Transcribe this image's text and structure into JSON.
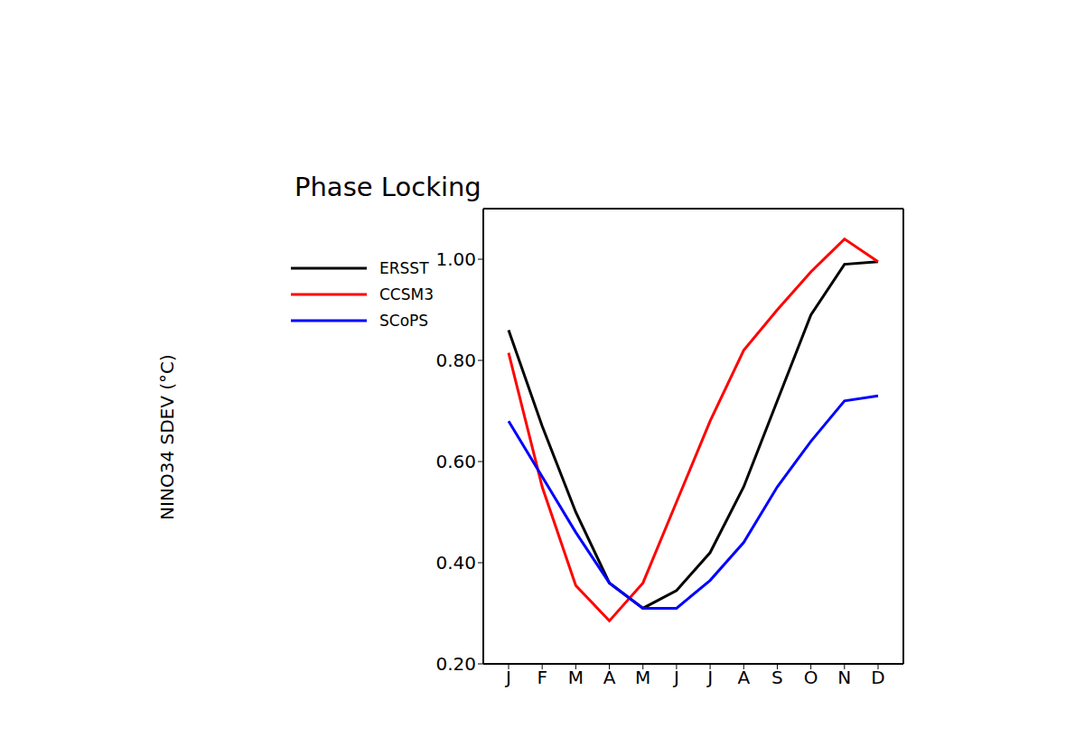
{
  "chart_data": {
    "type": "line",
    "title": "Phase Locking",
    "y_label": "NINO34 SDEV (°C)",
    "categories": [
      "J",
      "F",
      "M",
      "A",
      "M",
      "J",
      "J",
      "A",
      "S",
      "O",
      "N",
      "D"
    ],
    "ylim": [
      0.2,
      1.1
    ],
    "yticks": [
      {
        "value": 0.2,
        "label": "0.20"
      },
      {
        "value": 0.4,
        "label": "0.40"
      },
      {
        "value": 0.6,
        "label": "0.60"
      },
      {
        "value": 0.8,
        "label": "0.80"
      },
      {
        "value": 1.0,
        "label": "1.00"
      }
    ],
    "grid": false,
    "legend": "upper left",
    "series": [
      {
        "name": "ERSST",
        "color": "#000000",
        "values": [
          0.86,
          0.67,
          0.5,
          0.36,
          0.31,
          0.345,
          0.42,
          0.55,
          0.72,
          0.89,
          0.99,
          0.995
        ]
      },
      {
        "name": "CCSM3",
        "color": "#ff0000",
        "values": [
          0.815,
          0.55,
          0.355,
          0.285,
          0.36,
          0.52,
          0.68,
          0.82,
          0.9,
          0.975,
          1.04,
          0.995
        ]
      },
      {
        "name": "SCoPS",
        "color": "#0000ff",
        "values": [
          0.68,
          0.57,
          0.46,
          0.36,
          0.31,
          0.31,
          0.365,
          0.44,
          0.55,
          0.64,
          0.72,
          0.73
        ]
      }
    ]
  }
}
